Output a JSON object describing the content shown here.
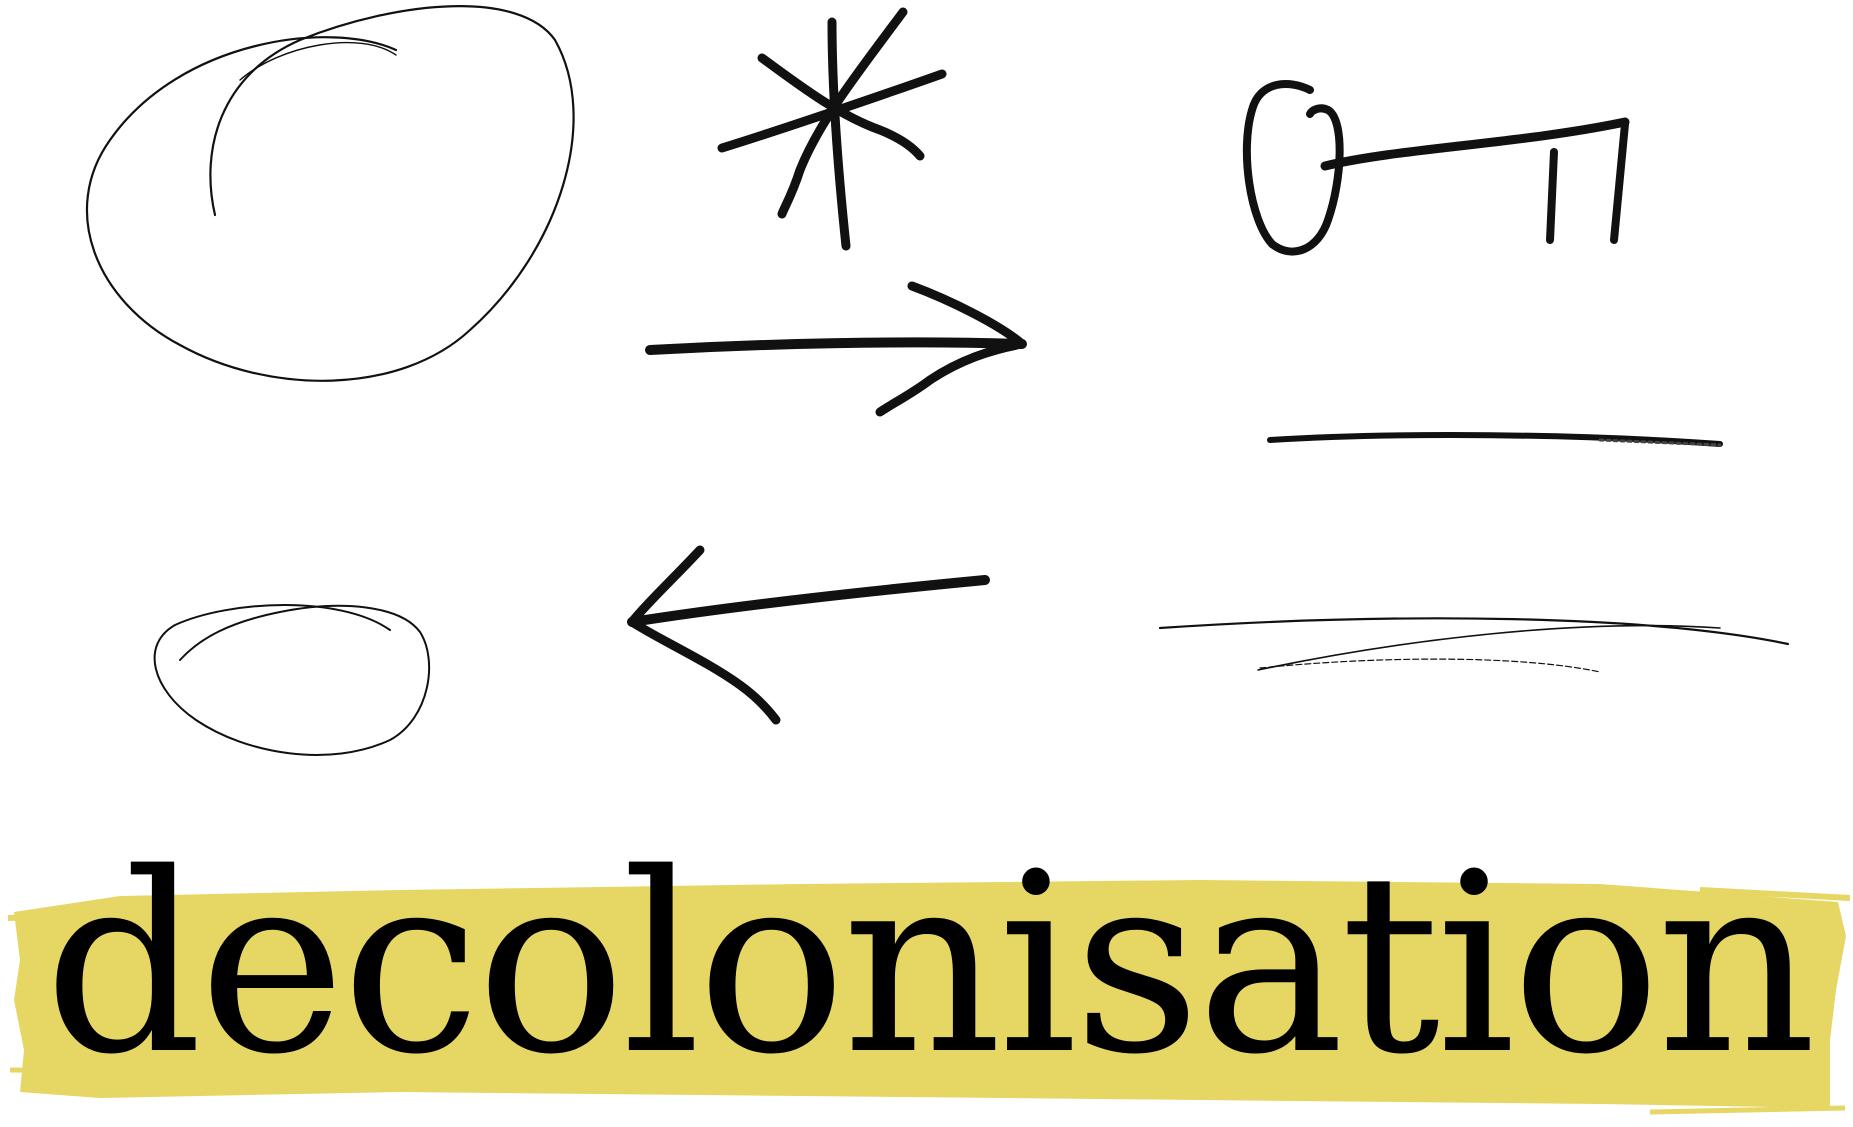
{
  "colors": {
    "ink": "#111111",
    "highlight": "#e6d664",
    "background": "#ffffff"
  },
  "doodles": [
    {
      "name": "large-egg-outline-icon"
    },
    {
      "name": "asterisk-icon"
    },
    {
      "name": "key-icon"
    },
    {
      "name": "right-arrow-icon"
    },
    {
      "name": "thick-line-icon"
    },
    {
      "name": "small-egg-outline-icon"
    },
    {
      "name": "left-arrow-icon"
    },
    {
      "name": "thin-swoosh-lines-icon"
    },
    {
      "name": "yellow-brush-stroke"
    }
  ],
  "word": "decolonisation"
}
